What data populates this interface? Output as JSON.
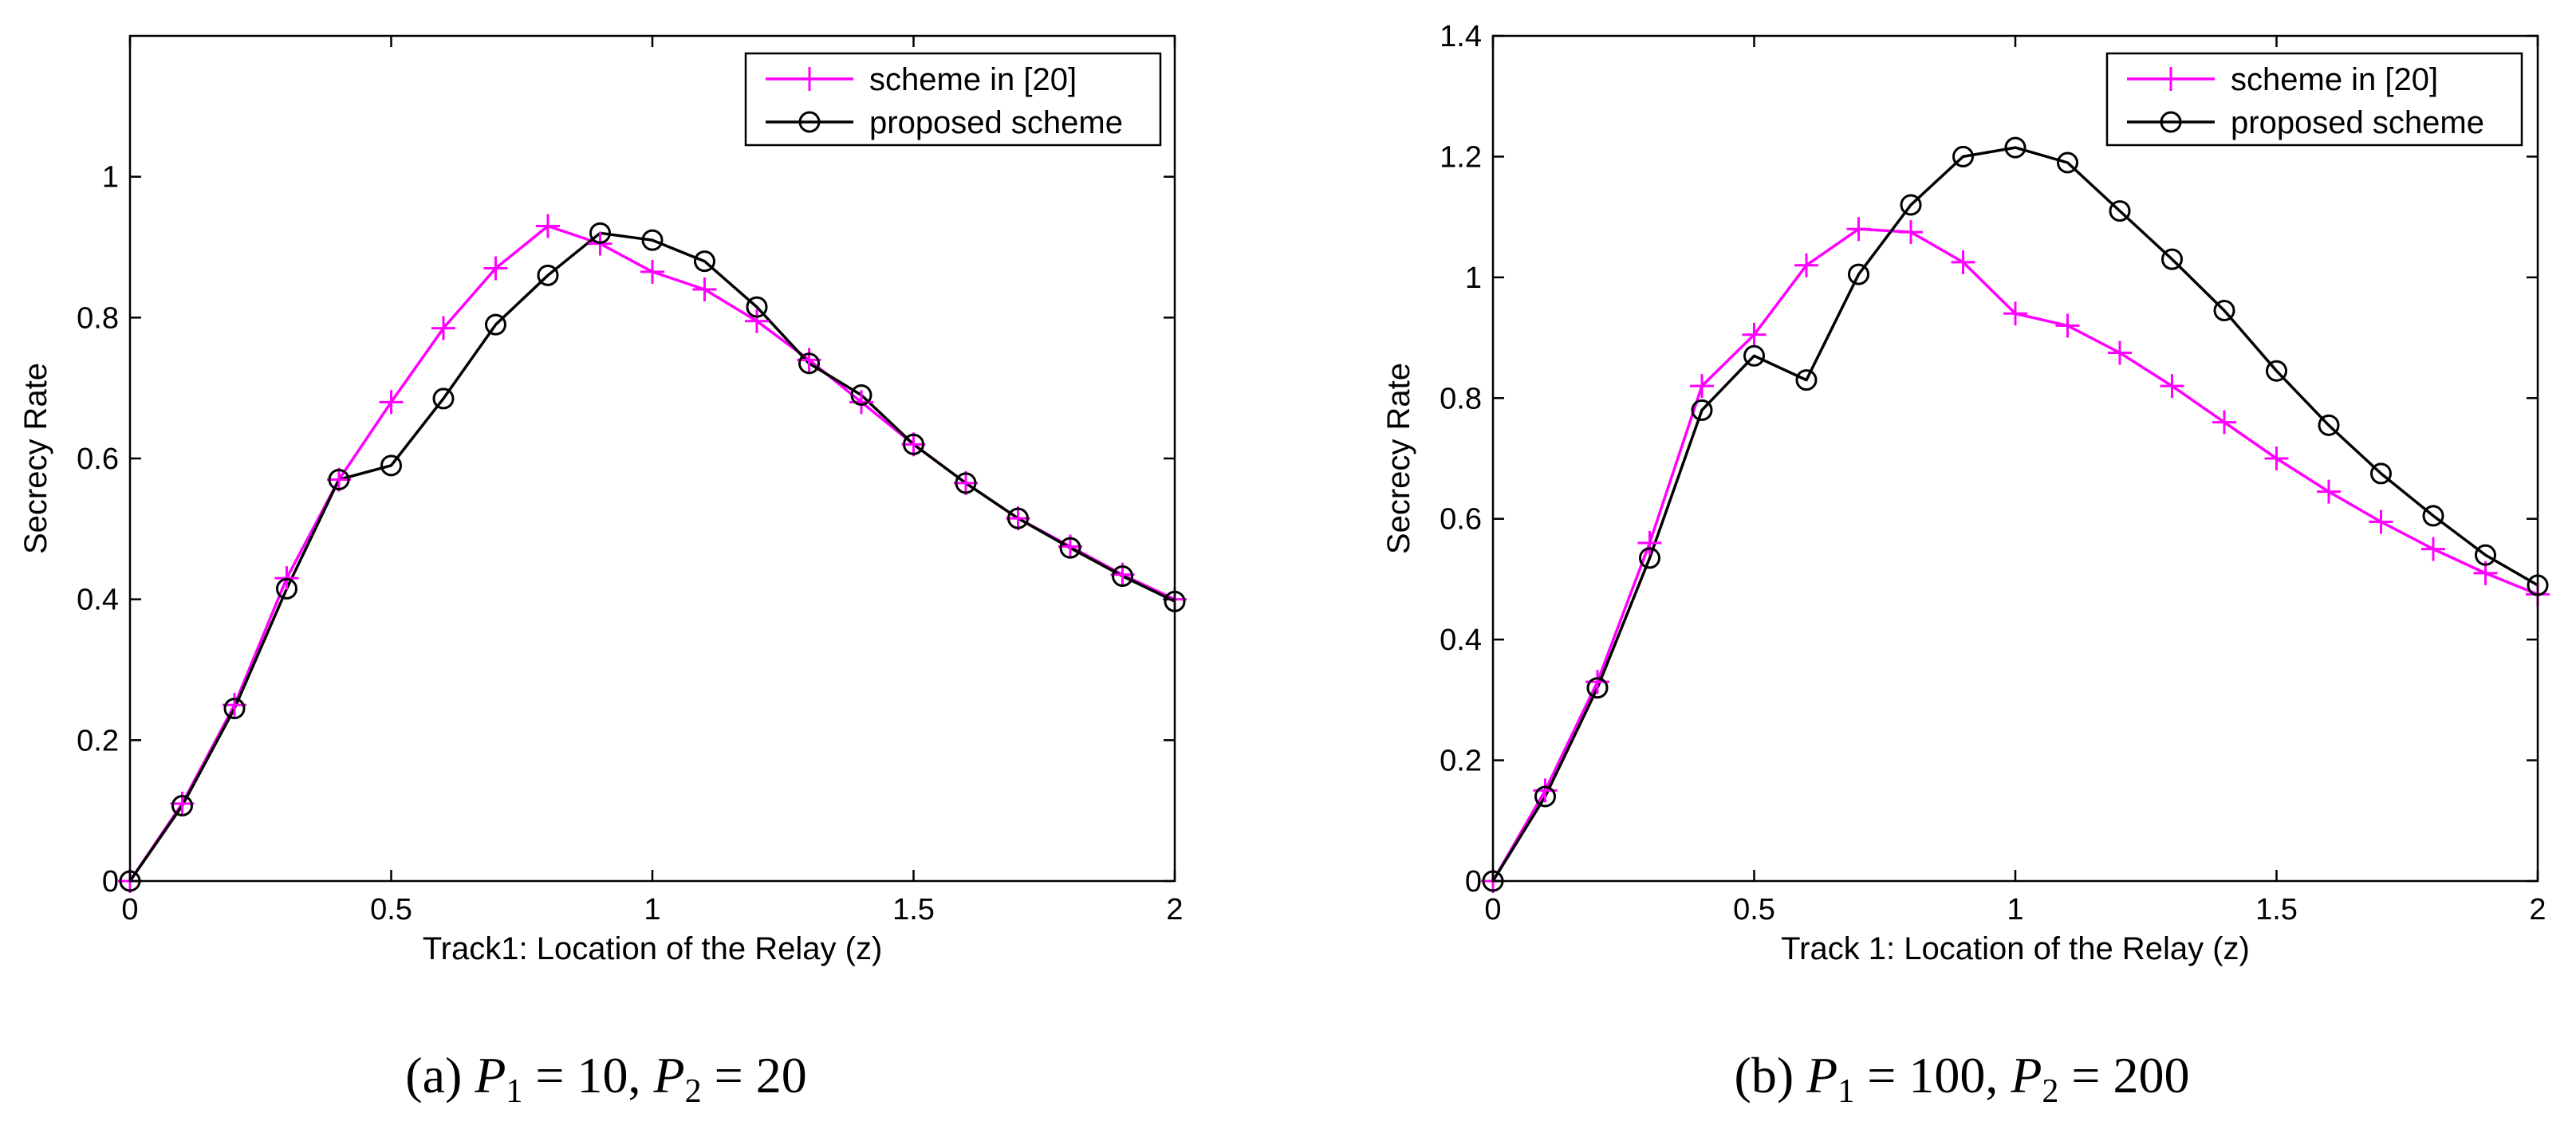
{
  "colors": {
    "series_magenta": "#ff00ff",
    "series_black": "#000000",
    "axes": "#000000",
    "background": "#ffffff"
  },
  "chart_data": [
    {
      "type": "line",
      "caption": {
        "label": "(a)",
        "p1_symbol": "P",
        "p1_sub": "1",
        "p1_rest": " = 10, ",
        "p2_symbol": "P",
        "p2_sub": "2",
        "p2_rest": " = 20"
      },
      "title": "",
      "xlabel": "Track1: Location of the Relay (z)",
      "ylabel": "Secrecy Rate",
      "xlim": [
        0,
        2
      ],
      "ylim": [
        0,
        1.2
      ],
      "xticks": [
        0,
        0.5,
        1,
        1.5,
        2
      ],
      "xtick_labels": [
        "0",
        "0.5",
        "1",
        "1.5",
        "2"
      ],
      "yticks": [
        0,
        0.2,
        0.4,
        0.6,
        0.8,
        1
      ],
      "ytick_labels": [
        "0",
        "0.2",
        "0.4",
        "0.6",
        "0.8",
        "1"
      ],
      "grid": false,
      "legend_position": "top-right",
      "series": [
        {
          "name": "scheme in [20]",
          "color": "#ff00ff",
          "marker": "plus",
          "x": [
            0,
            0.1,
            0.2,
            0.3,
            0.4,
            0.5,
            0.6,
            0.7,
            0.8,
            0.9,
            1.0,
            1.1,
            1.2,
            1.3,
            1.4,
            1.5,
            1.6,
            1.7,
            1.8,
            1.9,
            2.0
          ],
          "values": [
            0,
            0.11,
            0.25,
            0.43,
            0.57,
            0.68,
            0.785,
            0.87,
            0.93,
            0.905,
            0.865,
            0.84,
            0.795,
            0.74,
            0.68,
            0.62,
            0.565,
            0.515,
            0.475,
            0.435,
            0.4
          ]
        },
        {
          "name": "proposed scheme",
          "color": "#000000",
          "marker": "circle",
          "x": [
            0,
            0.1,
            0.2,
            0.3,
            0.4,
            0.5,
            0.6,
            0.7,
            0.8,
            0.9,
            1.0,
            1.1,
            1.2,
            1.3,
            1.4,
            1.5,
            1.6,
            1.7,
            1.8,
            1.9,
            2.0
          ],
          "values": [
            0,
            0.107,
            0.245,
            0.415,
            0.57,
            0.59,
            0.685,
            0.79,
            0.86,
            0.92,
            0.91,
            0.88,
            0.815,
            0.735,
            0.69,
            0.62,
            0.565,
            0.515,
            0.473,
            0.433,
            0.397
          ]
        }
      ]
    },
    {
      "type": "line",
      "caption": {
        "label": "(b)",
        "p1_symbol": "P",
        "p1_sub": "1",
        "p1_rest": " = 100, ",
        "p2_symbol": "P",
        "p2_sub": "2",
        "p2_rest": " = 200"
      },
      "title": "",
      "xlabel": "Track 1: Location of the Relay (z)",
      "ylabel": "Secrecy Rate",
      "xlim": [
        0,
        2
      ],
      "ylim": [
        0,
        1.4
      ],
      "xticks": [
        0,
        0.5,
        1,
        1.5,
        2
      ],
      "xtick_labels": [
        "0",
        "0.5",
        "1",
        "1.5",
        "2"
      ],
      "yticks": [
        0,
        0.2,
        0.4,
        0.6,
        0.8,
        1,
        1.2,
        1.4
      ],
      "ytick_labels": [
        "0",
        "0.2",
        "0.4",
        "0.6",
        "0.8",
        "1",
        "1.2",
        "1.4"
      ],
      "grid": false,
      "legend_position": "top-right",
      "series": [
        {
          "name": "scheme in [20]",
          "color": "#ff00ff",
          "marker": "plus",
          "x": [
            0,
            0.1,
            0.2,
            0.3,
            0.4,
            0.5,
            0.6,
            0.7,
            0.8,
            0.9,
            1.0,
            1.1,
            1.2,
            1.3,
            1.4,
            1.5,
            1.6,
            1.7,
            1.8,
            1.9,
            2.0
          ],
          "values": [
            0,
            0.15,
            0.33,
            0.56,
            0.82,
            0.905,
            1.02,
            1.08,
            1.075,
            1.025,
            0.94,
            0.92,
            0.875,
            0.82,
            0.76,
            0.7,
            0.645,
            0.595,
            0.55,
            0.51,
            0.475
          ]
        },
        {
          "name": "proposed scheme",
          "color": "#000000",
          "marker": "circle",
          "x": [
            0,
            0.1,
            0.2,
            0.3,
            0.4,
            0.5,
            0.6,
            0.7,
            0.8,
            0.9,
            1.0,
            1.1,
            1.2,
            1.3,
            1.4,
            1.5,
            1.6,
            1.7,
            1.8,
            1.9,
            2.0
          ],
          "values": [
            0,
            0.14,
            0.32,
            0.535,
            0.78,
            0.87,
            0.83,
            1.005,
            1.12,
            1.2,
            1.215,
            1.19,
            1.11,
            1.03,
            0.945,
            0.845,
            0.755,
            0.675,
            0.605,
            0.54,
            0.49
          ]
        }
      ]
    }
  ]
}
